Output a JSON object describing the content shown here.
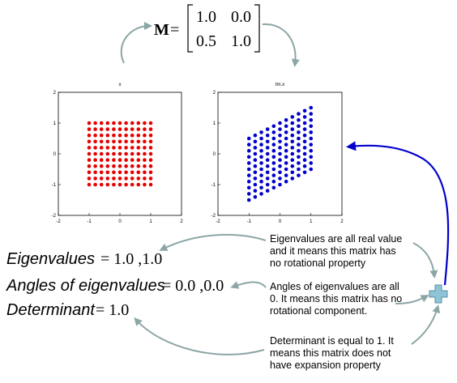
{
  "matrix": {
    "symbol": "M",
    "equals": "=",
    "rows": [
      [
        "1.0",
        "0.0"
      ],
      [
        "0.5",
        "1.0"
      ]
    ],
    "values": [
      [
        1.0,
        0.0
      ],
      [
        0.5,
        1.0
      ]
    ]
  },
  "chart_data": [
    {
      "type": "scatter",
      "title": "x",
      "xlim": [
        -2,
        2
      ],
      "ylim": [
        -2,
        2
      ],
      "xticks": [
        "-2",
        "-1",
        "0",
        "1",
        "2"
      ],
      "yticks": [
        "2",
        "1",
        "0",
        "-1",
        "-2"
      ],
      "grid_x": [
        -1,
        1
      ],
      "grid_y": [
        -1,
        1
      ],
      "grid_n": 11,
      "shear": 0.0,
      "color": "#e60000"
    },
    {
      "type": "scatter",
      "title": "tm.x",
      "xlim": [
        -2,
        2
      ],
      "ylim": [
        -2,
        2
      ],
      "xticks": [
        "-2",
        "-1",
        "0",
        "1",
        "2"
      ],
      "yticks": [
        "2",
        "1",
        "0",
        "-1",
        "-2"
      ],
      "grid_x": [
        -1,
        1
      ],
      "grid_y": [
        -1,
        1
      ],
      "grid_n": 11,
      "shear": 0.5,
      "color": "#0000cc"
    }
  ],
  "formulas": [
    {
      "name": "Eigenvalues",
      "value": "= 1.0 ,1.0"
    },
    {
      "name": "Angles of eigenvalues",
      "value": "= 0.0 ,0.0"
    },
    {
      "name": "Determinant",
      "value": "= 1.0"
    }
  ],
  "notes": [
    [
      "Eigenvalues are all real value",
      "and it means this matrix has",
      "no rotational property"
    ],
    [
      "Angles of eigenvalues are all",
      "0. It means this matrix has no",
      "rotational component."
    ],
    [
      "Determinant is equal  to 1. It",
      "means this matrix does not",
      "have expansion property"
    ]
  ],
  "colors": {
    "arrow": "#8ca5a5",
    "blue_arrow": "#0000cc",
    "plus": "#8fc4d6"
  },
  "icons": {
    "plus": "plus-icon"
  }
}
